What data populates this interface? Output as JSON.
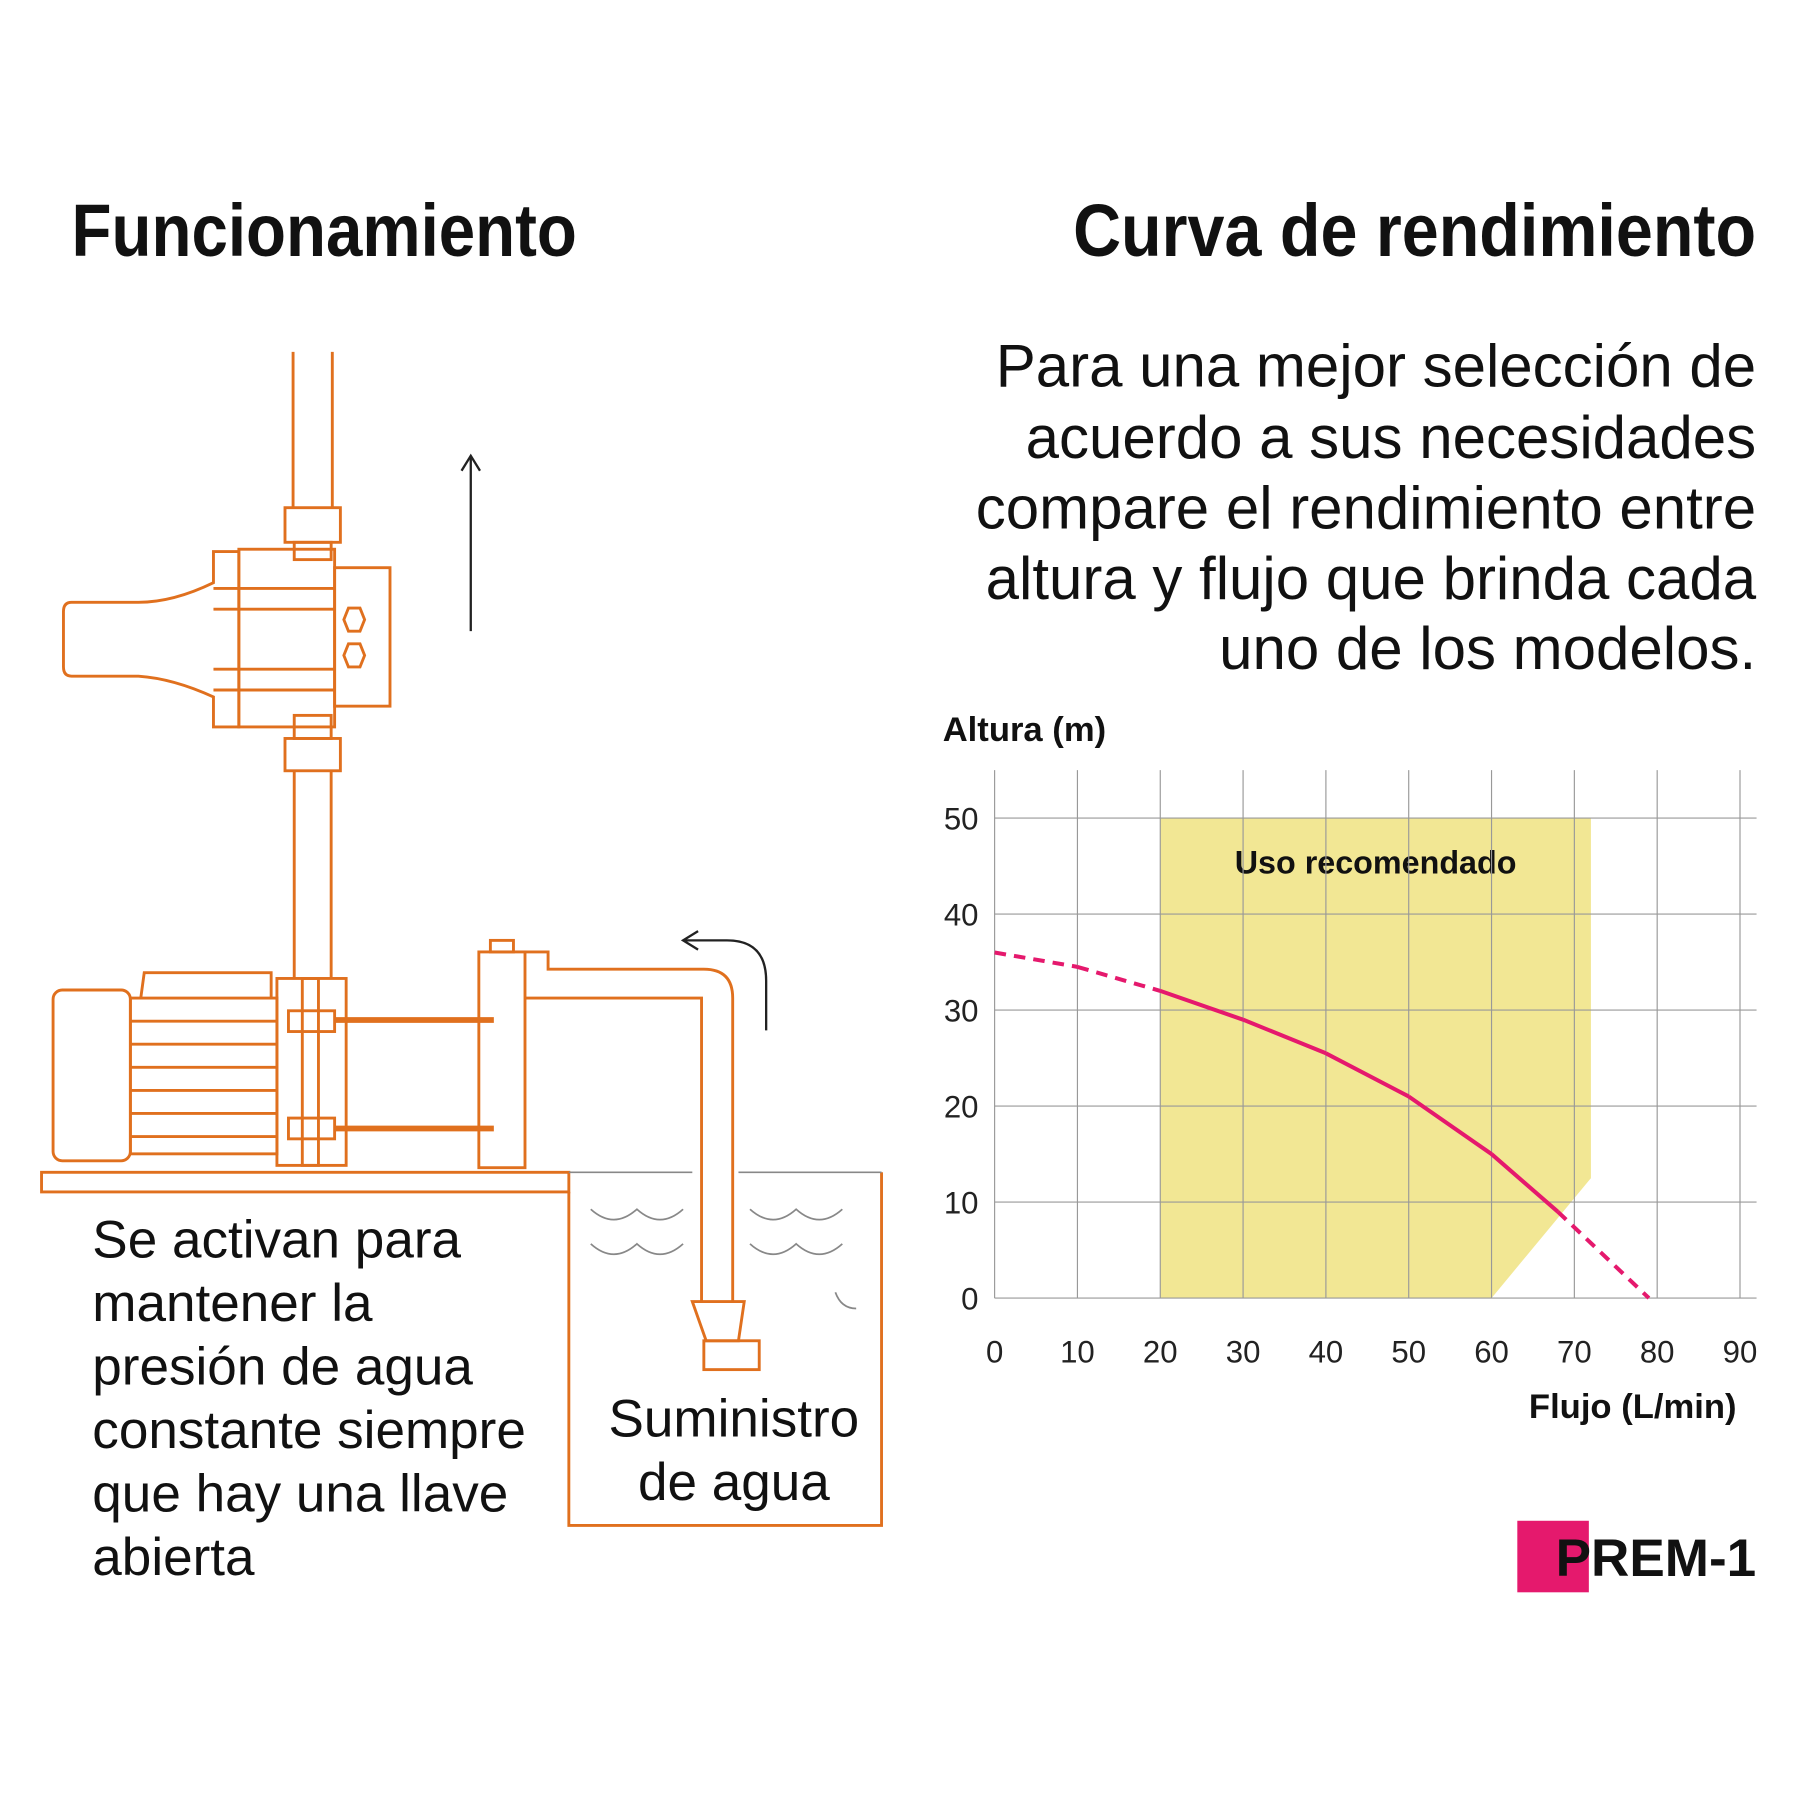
{
  "left": {
    "title": "Funcionamiento",
    "description": [
      "Se activan para",
      "mantener la",
      "presión de agua",
      "constante siempre",
      "que hay una llave",
      "abierta"
    ],
    "supply_label": [
      "Suministro",
      "de agua"
    ]
  },
  "right": {
    "title": "Curva de rendimiento",
    "description": [
      "Para una mejor selección de",
      "acuerdo a sus necesidades",
      "compare el rendimiento entre",
      "altura y flujo que brinda cada",
      "uno de los modelos."
    ]
  },
  "chart_data": {
    "type": "line",
    "y_label": "Altura (m)",
    "x_label": "Flujo (L/min)",
    "x": [
      0,
      10,
      20,
      30,
      40,
      50,
      60,
      68,
      79
    ],
    "series": [
      {
        "name": "PREM-1",
        "color": "#e5196d",
        "values": [
          36,
          34.5,
          32,
          29,
          25.5,
          21,
          15,
          9,
          0
        ]
      }
    ],
    "recommended_area": {
      "label": "Uso recomendado",
      "color": "#f2e794",
      "x": [
        20,
        20,
        72,
        72,
        60
      ],
      "y": [
        0,
        50,
        50,
        12.5,
        0
      ]
    },
    "xlim": [
      0,
      92
    ],
    "ylim": [
      0,
      55
    ],
    "xticks": [
      0,
      10,
      20,
      30,
      40,
      50,
      60,
      70,
      80,
      90
    ],
    "yticks": [
      0,
      10,
      20,
      30,
      40,
      50
    ],
    "grid": true
  }
}
